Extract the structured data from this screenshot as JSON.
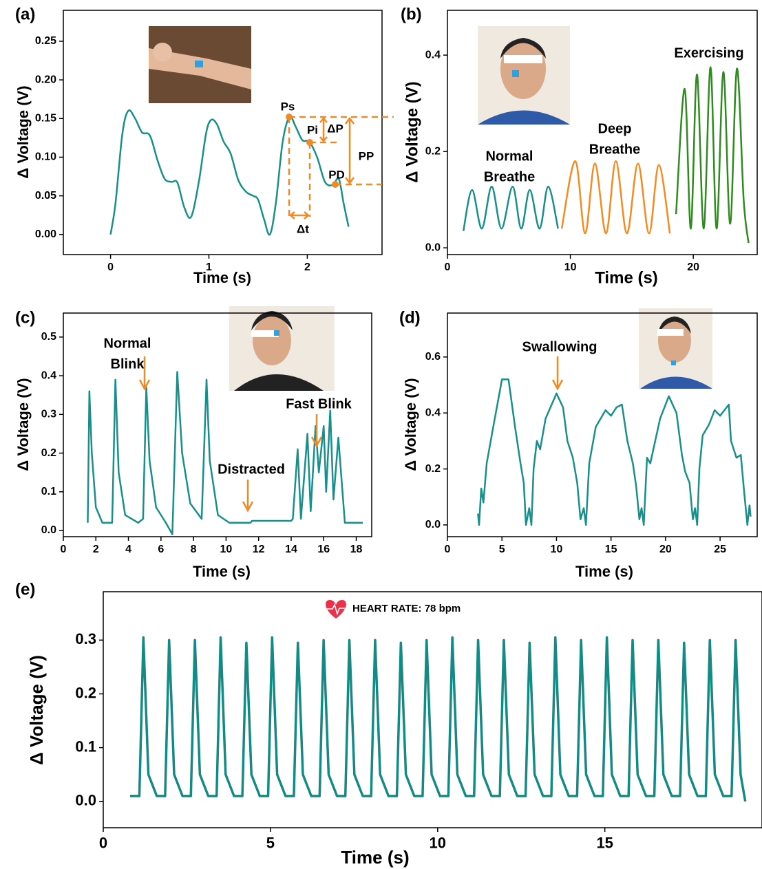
{
  "chart_data": [
    {
      "type": "line",
      "panel": "(a)",
      "xlabel": "Time (s)",
      "ylabel": "Δ Voltage (V)",
      "xlim": [
        -0.48,
        2.76
      ],
      "ylim": [
        -0.026,
        0.29
      ],
      "xticks": [
        0,
        1,
        2
      ],
      "yticks": [
        {
          "value": 0,
          "label": "0.00"
        },
        0.05,
        {
          "value": 0.1,
          "label": "0.10"
        },
        0.15,
        {
          "value": 0.2,
          "label": "0.20"
        },
        0.25
      ],
      "series": [
        {
          "color": "#17908b",
          "x": [
            0,
            0.05,
            0.12,
            0.18,
            0.25,
            0.32,
            0.4,
            0.48,
            0.55,
            0.62,
            0.68,
            0.75,
            0.82,
            0.9,
            0.97,
            1.02,
            1.08,
            1.15,
            1.22,
            1.3,
            1.38,
            1.45,
            1.5,
            1.56,
            1.62,
            1.68,
            1.75,
            1.82,
            1.88,
            1.95,
            2.02,
            2.1,
            2.18,
            2.26,
            2.32,
            2.37,
            2.42
          ],
          "values": [
            0,
            0.04,
            0.13,
            0.16,
            0.15,
            0.132,
            0.128,
            0.095,
            0.072,
            0.068,
            0.067,
            0.035,
            0.023,
            0.07,
            0.13,
            0.148,
            0.143,
            0.12,
            0.105,
            0.07,
            0.055,
            0.05,
            0.045,
            0.02,
            0.0,
            0.04,
            0.12,
            0.152,
            0.14,
            0.122,
            0.12,
            0.1,
            0.068,
            0.064,
            0.072,
            0.04,
            0.01
          ]
        }
      ],
      "annotations": [
        [
          "Ps"
        ],
        [
          "Pi"
        ],
        [
          "ΔP"
        ],
        [
          "PD"
        ],
        [
          "PP"
        ],
        [
          "Δt"
        ]
      ]
    },
    {
      "type": "line",
      "panel": "(b)",
      "xlabel": "Time (s)",
      "ylabel": "Δ Voltage (V)",
      "xlim": [
        0,
        25.2
      ],
      "ylim": [
        -0.014,
        0.493
      ],
      "xticks": [
        0,
        10,
        20
      ],
      "yticks": [
        {
          "value": 0,
          "label": "0.0"
        },
        0.2,
        0.4
      ],
      "series": [
        {
          "color": "#17908b",
          "x": [
            1.3,
            2.0,
            2.8,
            3.6,
            4.4,
            5.3,
            6.0,
            6.7,
            7.5,
            8.2,
            9.0
          ],
          "values": [
            0.035,
            0.12,
            0.04,
            0.127,
            0.04,
            0.127,
            0.04,
            0.12,
            0.04,
            0.127,
            0.04
          ]
        },
        {
          "color": "#f58a1f",
          "x": [
            9.3,
            10.4,
            11.2,
            12.0,
            12.9,
            13.7,
            14.6,
            15.5,
            16.4,
            17.2,
            18.1
          ],
          "values": [
            0.04,
            0.18,
            0.03,
            0.175,
            0.03,
            0.18,
            0.03,
            0.175,
            0.03,
            0.172,
            0.03
          ]
        },
        {
          "color": "#2e8b1e",
          "x": [
            18.6,
            19.3,
            19.8,
            20.3,
            20.85,
            21.4,
            21.9,
            22.45,
            23.0,
            23.55,
            24.1,
            24.5
          ],
          "values": [
            0.07,
            0.33,
            0.04,
            0.36,
            0.04,
            0.375,
            0.04,
            0.365,
            0.05,
            0.372,
            0.1,
            0.01
          ]
        }
      ],
      "annotations": [
        [
          "Normal",
          "Breathe"
        ],
        [
          "Deep",
          "Breathe"
        ],
        [
          "Exercising"
        ]
      ]
    },
    {
      "type": "line",
      "panel": "(c)",
      "xlabel": "Time (s)",
      "ylabel": "Δ Voltage (V)",
      "xlim": [
        0,
        18.95
      ],
      "ylim": [
        -0.016,
        0.562
      ],
      "xticks": [
        0,
        2,
        4,
        6,
        8,
        10,
        12,
        14,
        16,
        18
      ],
      "yticks": [
        {
          "value": 0,
          "label": "0.0"
        },
        0.1,
        0.2,
        0.3,
        0.4,
        0.5
      ],
      "series": [
        {
          "color": "#17908b",
          "x": [
            1.5,
            1.6,
            1.75,
            2.0,
            2.4,
            3.0,
            3.2,
            3.4,
            3.8,
            4.6,
            4.9,
            5.1,
            5.3,
            5.7,
            6.3,
            6.7,
            7.0,
            7.3,
            7.8,
            8.5,
            8.8,
            9.0,
            9.5,
            10.2,
            11.5,
            11.6,
            14.0,
            14.1,
            14.4,
            14.6,
            15.0,
            15.2,
            15.5,
            15.7,
            16.0,
            16.15,
            16.4,
            16.6,
            16.9,
            17.3,
            18.4
          ],
          "values": [
            0.02,
            0.36,
            0.2,
            0.06,
            0.02,
            0.02,
            0.39,
            0.15,
            0.04,
            0.02,
            0.03,
            0.37,
            0.18,
            0.06,
            0.02,
            -0.01,
            0.41,
            0.2,
            0.07,
            0.03,
            0.39,
            0.18,
            0.04,
            0.02,
            0.02,
            0.025,
            0.025,
            0.03,
            0.21,
            0.03,
            0.25,
            0.05,
            0.27,
            0.15,
            0.27,
            0.1,
            0.31,
            0.08,
            0.24,
            0.02,
            0.02
          ]
        }
      ],
      "annotations": [
        [
          "Normal",
          "Blink"
        ],
        [
          "Distracted"
        ],
        [
          "Fast Blink"
        ]
      ]
    },
    {
      "type": "line",
      "panel": "(d)",
      "xlabel": "Time (s)",
      "ylabel": "Δ Voltage (V)",
      "xlim": [
        0,
        28.4
      ],
      "ylim": [
        -0.042,
        0.757
      ],
      "xticks": [
        0,
        5,
        10,
        15,
        20,
        25
      ],
      "yticks": [
        {
          "value": 0,
          "label": "0.0"
        },
        0.2,
        0.4,
        0.6
      ],
      "series": [
        {
          "color": "#17908b",
          "x": [
            2.8,
            2.9,
            3.1,
            3.3,
            3.6,
            4.2,
            5.0,
            5.6,
            6.2,
            6.7,
            7.0,
            7.2,
            7.5,
            7.7,
            7.9,
            8.2,
            8.5,
            9.0,
            10.0,
            10.6,
            11.0,
            11.5,
            11.9,
            12.2,
            12.5,
            12.7,
            13.0,
            13.6,
            14.5,
            15.0,
            15.5,
            16.0,
            16.5,
            17.0,
            17.3,
            17.6,
            17.8,
            18.0,
            18.3,
            18.6,
            19.5,
            20.3,
            21.0,
            21.5,
            21.8,
            22.2,
            22.5,
            22.7,
            22.9,
            23.1,
            23.4,
            24.0,
            24.5,
            25.0,
            25.8,
            26.0,
            26.5,
            26.9,
            27.2,
            27.5,
            27.7,
            27.8
          ],
          "values": [
            0.04,
            0.0,
            0.13,
            0.08,
            0.22,
            0.35,
            0.52,
            0.52,
            0.35,
            0.22,
            0.15,
            0.0,
            0.06,
            0.0,
            0.2,
            0.3,
            0.27,
            0.38,
            0.47,
            0.42,
            0.3,
            0.24,
            0.15,
            0.02,
            0.06,
            0.0,
            0.22,
            0.35,
            0.41,
            0.39,
            0.42,
            0.43,
            0.3,
            0.22,
            0.14,
            0.02,
            0.06,
            0.0,
            0.24,
            0.22,
            0.38,
            0.46,
            0.4,
            0.25,
            0.19,
            0.15,
            0.02,
            0.06,
            0.0,
            0.2,
            0.32,
            0.36,
            0.41,
            0.39,
            0.43,
            0.3,
            0.24,
            0.25,
            0.12,
            0.0,
            0.07,
            0.03
          ]
        }
      ],
      "annotations": [
        [
          "Swallowing"
        ]
      ]
    },
    {
      "type": "line",
      "panel": "(e)",
      "xlabel": "Time (s)",
      "ylabel": "Δ Voltage (V)",
      "xlim": [
        0,
        19.7
      ],
      "ylim": [
        -0.049,
        0.39
      ],
      "xticks": [
        0,
        5,
        10,
        15
      ],
      "yticks": [
        {
          "value": 0,
          "label": "0.0"
        },
        0.1,
        0.2,
        0.3
      ],
      "series": [
        {
          "color": "#138a84",
          "x": [
            0.8,
            1.08,
            1.2,
            1.35,
            1.6,
            1.85,
            1.97,
            2.12,
            2.37,
            2.62,
            2.74,
            2.89,
            3.14,
            3.39,
            3.51,
            3.66,
            3.91,
            4.16,
            4.28,
            4.43,
            4.68,
            4.93,
            5.05,
            5.2,
            5.45,
            5.7,
            5.82,
            5.97,
            6.22,
            6.47,
            6.59,
            6.74,
            6.99,
            7.24,
            7.36,
            7.51,
            7.76,
            8.01,
            8.13,
            8.28,
            8.53,
            8.78,
            8.9,
            9.05,
            9.3,
            9.55,
            9.67,
            9.82,
            10.07,
            10.32,
            10.44,
            10.59,
            10.84,
            11.09,
            11.21,
            11.36,
            11.61,
            11.86,
            11.98,
            12.13,
            12.38,
            12.63,
            12.75,
            12.9,
            13.15,
            13.4,
            13.52,
            13.67,
            13.92,
            14.17,
            14.29,
            14.44,
            14.69,
            14.94,
            15.06,
            15.21,
            15.46,
            15.71,
            15.83,
            15.98,
            16.23,
            16.48,
            16.6,
            16.75,
            17.0,
            17.25,
            17.37,
            17.52,
            17.77,
            18.02,
            18.14,
            18.29,
            18.54,
            18.79,
            18.91,
            19.06,
            19.2
          ],
          "values": [
            0.01,
            0.01,
            0.305,
            0.05,
            0.01,
            0.01,
            0.3,
            0.05,
            0.01,
            0.01,
            0.3,
            0.05,
            0.01,
            0.01,
            0.305,
            0.05,
            0.01,
            0.01,
            0.295,
            0.05,
            0.01,
            0.01,
            0.305,
            0.05,
            0.01,
            0.01,
            0.295,
            0.05,
            0.01,
            0.01,
            0.3,
            0.05,
            0.01,
            0.01,
            0.3,
            0.05,
            0.01,
            0.01,
            0.3,
            0.05,
            0.01,
            0.01,
            0.295,
            0.05,
            0.01,
            0.01,
            0.3,
            0.05,
            0.01,
            0.01,
            0.305,
            0.05,
            0.01,
            0.01,
            0.3,
            0.05,
            0.01,
            0.01,
            0.3,
            0.05,
            0.01,
            0.01,
            0.295,
            0.05,
            0.01,
            0.01,
            0.305,
            0.05,
            0.01,
            0.01,
            0.3,
            0.05,
            0.01,
            0.01,
            0.305,
            0.05,
            0.01,
            0.01,
            0.3,
            0.05,
            0.01,
            0.01,
            0.3,
            0.05,
            0.01,
            0.01,
            0.295,
            0.05,
            0.01,
            0.01,
            0.3,
            0.05,
            0.01,
            0.01,
            0.3,
            0.05,
            0.0
          ]
        }
      ],
      "annotations": [
        [
          "HEART RATE: 78 bpm"
        ]
      ]
    }
  ]
}
